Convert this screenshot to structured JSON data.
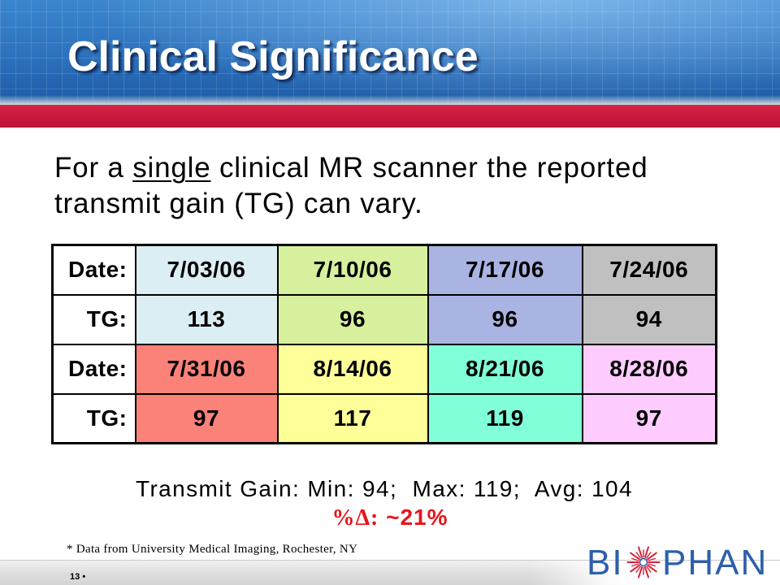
{
  "slide": {
    "title": "Clinical Significance",
    "intro": {
      "prefix": "For a ",
      "underlined": "single",
      "suffix": " clinical MR scanner the reported transmit gain (TG) can vary."
    },
    "table": {
      "rows": [
        {
          "label": "Date:",
          "cells": [
            "7/03/06",
            "7/10/06",
            "7/17/06",
            "7/24/06"
          ]
        },
        {
          "label": "TG:",
          "cells": [
            "113",
            "96",
            "96",
            "94"
          ]
        },
        {
          "label": "Date:",
          "cells": [
            "7/31/06",
            "8/14/06",
            "8/21/06",
            "8/28/06"
          ]
        },
        {
          "label": "TG:",
          "cells": [
            "97",
            "117",
            "119",
            "97"
          ]
        }
      ],
      "cell_colors": [
        [
          "#dbeef4",
          "#d7f09e",
          "#a9b4e2",
          "#c0c0c0"
        ],
        [
          "#fa8278",
          "#ffff99",
          "#80ffd8",
          "#ffccff"
        ]
      ]
    },
    "summary": "Transmit Gain: Min: 94;  Max: 119;  Avg: 104",
    "percent_change": {
      "label": "%Δ:",
      "value": "~21%",
      "color": "#e8141c"
    },
    "footnote": "* Data from University Medical Imaging, Rochester, NY",
    "page_number": "13",
    "page_bullet": "•"
  },
  "logo": {
    "text_before_icon": "BI",
    "text_after_icon": "PHAN",
    "icon": "starburst-icon",
    "color": "#2d60ac",
    "accent": "#d8203a"
  },
  "theme": {
    "header_blue": "#2c71bc",
    "band_red": "#c8193c"
  }
}
